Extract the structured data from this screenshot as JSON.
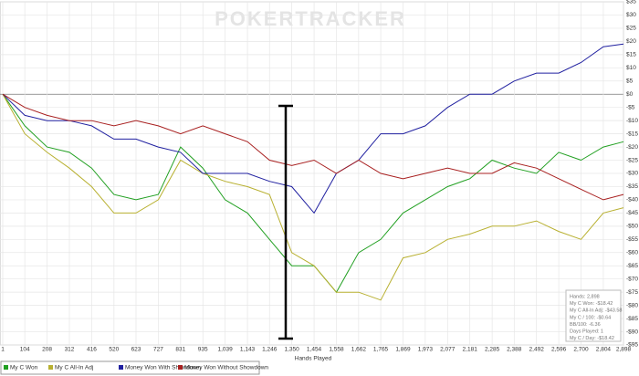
{
  "chart_data": {
    "type": "line",
    "watermark": "POKERTRACKER",
    "xlabel": "Hands Played",
    "x": [
      1,
      104,
      208,
      312,
      416,
      520,
      623,
      727,
      831,
      935,
      1039,
      1143,
      1246,
      1350,
      1454,
      1558,
      1662,
      1765,
      1869,
      1973,
      2077,
      2181,
      2285,
      2388,
      2492,
      2596,
      2700,
      2804,
      2898
    ],
    "xlim": [
      1,
      2898
    ],
    "xticks": [
      1,
      104,
      208,
      312,
      416,
      520,
      623,
      727,
      831,
      935,
      {
        "value": 1039,
        "label": "1,039"
      },
      {
        "value": 1143,
        "label": "1,143"
      },
      {
        "value": 1246,
        "label": "1,246"
      },
      {
        "value": 1350,
        "label": "1,350"
      },
      {
        "value": 1454,
        "label": "1,454"
      },
      {
        "value": 1558,
        "label": "1,558"
      },
      {
        "value": 1662,
        "label": "1,662"
      },
      {
        "value": 1765,
        "label": "1,765"
      },
      {
        "value": 1869,
        "label": "1,869"
      },
      {
        "value": 1973,
        "label": "1,973"
      },
      {
        "value": 2077,
        "label": "2,077"
      },
      {
        "value": 2181,
        "label": "2,181"
      },
      {
        "value": 2285,
        "label": "2,285"
      },
      {
        "value": 2388,
        "label": "2,388"
      },
      {
        "value": 2492,
        "label": "2,492"
      },
      {
        "value": 2596,
        "label": "2,596"
      },
      {
        "value": 2700,
        "label": "2,700"
      },
      {
        "value": 2804,
        "label": "2,804"
      },
      {
        "value": 2898,
        "label": "2,898"
      }
    ],
    "ylim": [
      -95,
      35
    ],
    "yticks": [
      {
        "value": 35,
        "label": "$35"
      },
      {
        "value": 30,
        "label": "$30"
      },
      {
        "value": 25,
        "label": "$25"
      },
      {
        "value": 20,
        "label": "$20"
      },
      {
        "value": 15,
        "label": "$15"
      },
      {
        "value": 10,
        "label": "$10"
      },
      {
        "value": 5,
        "label": "$5"
      },
      {
        "value": 0,
        "label": "$0"
      },
      {
        "value": -5,
        "label": "-$5"
      },
      {
        "value": -10,
        "label": "-$10"
      },
      {
        "value": -15,
        "label": "-$15"
      },
      {
        "value": -20,
        "label": "-$20"
      },
      {
        "value": -25,
        "label": "-$25"
      },
      {
        "value": -30,
        "label": "-$30"
      },
      {
        "value": -35,
        "label": "-$35"
      },
      {
        "value": -40,
        "label": "-$40"
      },
      {
        "value": -45,
        "label": "-$45"
      },
      {
        "value": -50,
        "label": "-$50"
      },
      {
        "value": -55,
        "label": "-$55"
      },
      {
        "value": -60,
        "label": "-$60"
      },
      {
        "value": -65,
        "label": "-$65"
      },
      {
        "value": -70,
        "label": "-$70"
      },
      {
        "value": -75,
        "label": "-$75"
      },
      {
        "value": -80,
        "label": "-$80"
      },
      {
        "value": -85,
        "label": "-$85"
      },
      {
        "value": -90,
        "label": "-$90"
      },
      {
        "value": -95,
        "label": "-$95"
      }
    ],
    "grid": true,
    "series": [
      {
        "name": "My C Won",
        "color": "#22a022",
        "values": [
          0,
          -12,
          -20,
          -22,
          -28,
          -38,
          -40,
          -38,
          -20,
          -28,
          -40,
          -45,
          -55,
          -65,
          -65,
          -75,
          -60,
          -55,
          -45,
          -40,
          -35,
          -32,
          -25,
          -28,
          -30,
          -22,
          -25,
          -20,
          -18
        ]
      },
      {
        "name": "My C All-In Adj",
        "color": "#b8b030",
        "values": [
          0,
          -15,
          -22,
          -28,
          -35,
          -45,
          -45,
          -40,
          -25,
          -30,
          -33,
          -35,
          -38,
          -60,
          -65,
          -75,
          -75,
          -78,
          -62,
          -60,
          -55,
          -53,
          -50,
          -50,
          -48,
          -52,
          -55,
          -45,
          -43
        ]
      },
      {
        "name": "Money Won With Showdown",
        "color": "#2020a0",
        "values": [
          0,
          -8,
          -10,
          -10,
          -12,
          -17,
          -17,
          -20,
          -22,
          -30,
          -30,
          -30,
          -33,
          -35,
          -45,
          -30,
          -25,
          -15,
          -15,
          -12,
          -5,
          0,
          0,
          5,
          8,
          8,
          12,
          18,
          19
        ]
      },
      {
        "name": "Money Won Without Showdown",
        "color": "#a82020",
        "values": [
          0,
          -5,
          -8,
          -10,
          -10,
          -12,
          -10,
          -12,
          -15,
          -12,
          -15,
          -18,
          -25,
          -27,
          -25,
          -30,
          -25,
          -30,
          -32,
          -30,
          -28,
          -30,
          -30,
          -26,
          -28,
          -32,
          -36,
          -40,
          -38
        ]
      }
    ],
    "info": [
      "Hands: 2,898",
      "My C Won: -$18.42",
      "My C All-In Adj: -$43.58",
      "My C / 100: -$0.64",
      "BB/100: -6.36",
      "Days Played: 1",
      "My C / Day: -$18.42"
    ]
  }
}
